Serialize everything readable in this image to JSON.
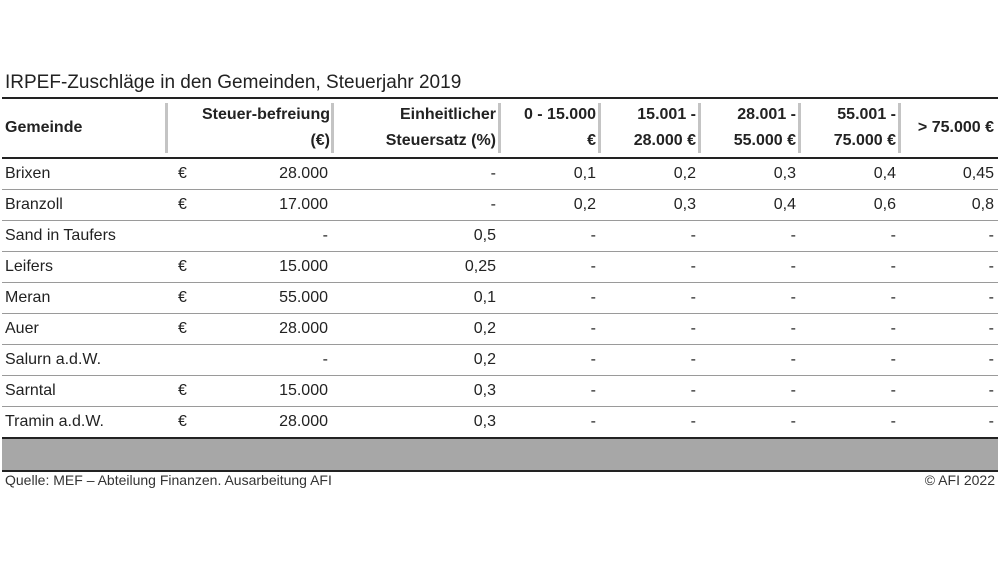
{
  "title": "IRPEF-Zuschläge in den Gemeinden, Steuerjahr 2019",
  "headers": {
    "gemeinde": "Gemeinde",
    "befreiung_1": "Steuer-befreiung",
    "befreiung_2": "(€)",
    "einheit_1": "Einheitlicher",
    "einheit_2": "Steuersatz (%)",
    "b1_1": "0 - 15.000",
    "b1_2": "€",
    "b2_1": "15.001 -",
    "b2_2": "28.000 €",
    "b3_1": "28.001 -",
    "b3_2": "55.000 €",
    "b4_1": "55.001 -",
    "b4_2": "75.000 €",
    "b5": "> 75.000 €"
  },
  "rows": [
    {
      "gemeinde": "Brixen",
      "cur": "€",
      "befreiung": "28.000",
      "einheit": "-",
      "b1": "0,1",
      "b2": "0,2",
      "b3": "0,3",
      "b4": "0,4",
      "b5": "0,45"
    },
    {
      "gemeinde": "Branzoll",
      "cur": "€",
      "befreiung": "17.000",
      "einheit": "-",
      "b1": "0,2",
      "b2": "0,3",
      "b3": "0,4",
      "b4": "0,6",
      "b5": "0,8"
    },
    {
      "gemeinde": "Sand in Taufers",
      "cur": "",
      "befreiung": "-",
      "einheit": "0,5",
      "b1": "-",
      "b2": "-",
      "b3": "-",
      "b4": "-",
      "b5": "-"
    },
    {
      "gemeinde": "Leifers",
      "cur": "€",
      "befreiung": "15.000",
      "einheit": "0,25",
      "b1": "-",
      "b2": "-",
      "b3": "-",
      "b4": "-",
      "b5": "-"
    },
    {
      "gemeinde": "Meran",
      "cur": "€",
      "befreiung": "55.000",
      "einheit": "0,1",
      "b1": "-",
      "b2": "-",
      "b3": "-",
      "b4": "-",
      "b5": "-"
    },
    {
      "gemeinde": "Auer",
      "cur": "€",
      "befreiung": "28.000",
      "einheit": "0,2",
      "b1": "-",
      "b2": "-",
      "b3": "-",
      "b4": "-",
      "b5": "-"
    },
    {
      "gemeinde": "Salurn a.d.W.",
      "cur": "",
      "befreiung": "-",
      "einheit": "0,2",
      "b1": "-",
      "b2": "-",
      "b3": "-",
      "b4": "-",
      "b5": "-"
    },
    {
      "gemeinde": "Sarntal",
      "cur": "€",
      "befreiung": "15.000",
      "einheit": "0,3",
      "b1": "-",
      "b2": "-",
      "b3": "-",
      "b4": "-",
      "b5": "-"
    },
    {
      "gemeinde": "Tramin a.d.W.",
      "cur": "€",
      "befreiung": "28.000",
      "einheit": "0,3",
      "b1": "-",
      "b2": "-",
      "b3": "-",
      "b4": "-",
      "b5": "-"
    }
  ],
  "footer": {
    "source": "Quelle: MEF – Abteilung Finanzen. Ausarbeitung AFI",
    "copyright": "© AFI 2022"
  }
}
